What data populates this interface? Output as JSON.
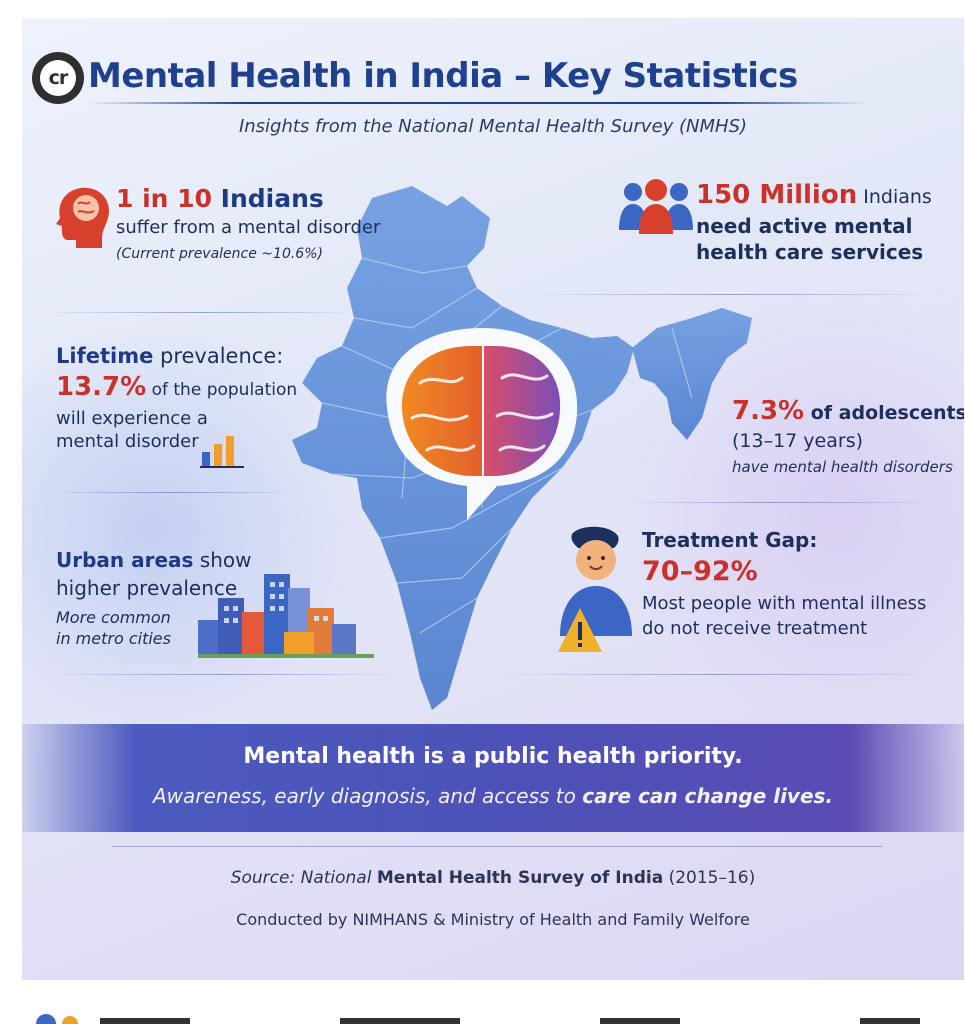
{
  "logo": {
    "text": "cr"
  },
  "header": {
    "title": "Mental Health in India – Key Statistics",
    "subtitle": "Insights from the National Mental Health Survey (NMHS)"
  },
  "stats": {
    "one_in_ten": {
      "number": "1 in 10",
      "rest": " Indians",
      "line2": "suffer from a mental disorder",
      "note": "(Current prevalence ~10.6%)"
    },
    "million": {
      "number": "150 Million",
      "rest": " Indians",
      "line2": "need active mental",
      "line3": "health care services"
    },
    "lifetime": {
      "label_bold": "Lifetime",
      "label_rest": " prevalence:",
      "number": "13.7%",
      "number_rest": " of the population",
      "line3": "will experience a",
      "line4": "mental disorder"
    },
    "adolescents": {
      "number": "7.3%",
      "rest": " of adolescents",
      "line2": "(13–17 years)",
      "line3": "have mental health disorders"
    },
    "urban": {
      "label_bold": "Urban areas",
      "label_rest": " show",
      "line2": "higher prevalence",
      "line3": "More common",
      "line4": "in metro cities"
    },
    "treatment": {
      "label": "Treatment Gap:",
      "number": "70–92%",
      "line3": "Most people with mental illness",
      "line4": "do not receive treatment"
    }
  },
  "banner": {
    "line1": "Mental health is a public health priority.",
    "line2_start": "Awareness, early diagnosis, and access to ",
    "line2_bold": "care can change lives."
  },
  "source": {
    "prefix": "Source: National ",
    "bold": "Mental Health Survey of India",
    "suffix": " (2015–16)",
    "conducted": "Conducted by NIMHANS & Ministry of Health and Family Welfore"
  },
  "colors": {
    "title": "#1f3f8f",
    "stat_red": "#c9312b",
    "banner": "#4d52b8",
    "map_blue": "#5c8fd6"
  }
}
